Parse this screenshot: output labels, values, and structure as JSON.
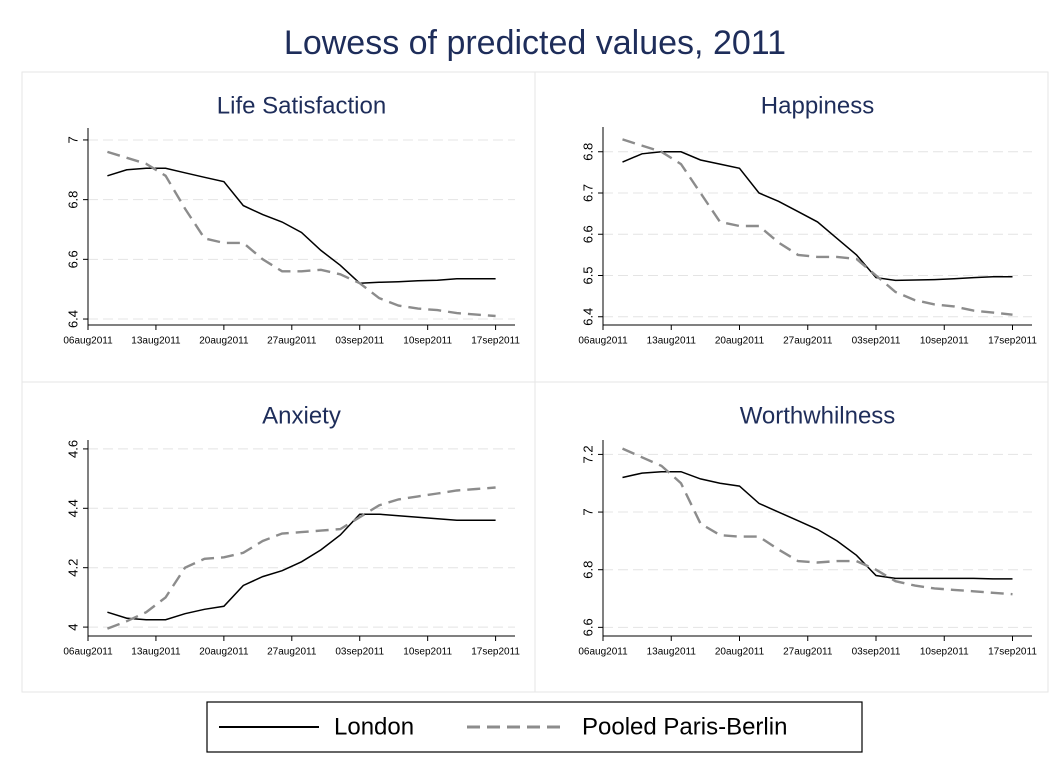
{
  "title": "Lowess of predicted values, 2011",
  "legend": "bottom",
  "chart_data": [
    {
      "type": "line",
      "title": "Life Satisfaction",
      "x": [
        "2011-08-08",
        "2011-08-10",
        "2011-08-12",
        "2011-08-14",
        "2011-08-16",
        "2011-08-18",
        "2011-08-20",
        "2011-08-22",
        "2011-08-24",
        "2011-08-26",
        "2011-08-28",
        "2011-08-30",
        "2011-09-01",
        "2011-09-03",
        "2011-09-05",
        "2011-09-07",
        "2011-09-09",
        "2011-09-11",
        "2011-09-13",
        "2011-09-15",
        "2011-09-17"
      ],
      "series": [
        {
          "name": "London",
          "color": "#000000",
          "values": [
            6.88,
            6.9,
            6.905,
            6.905,
            6.89,
            6.875,
            6.86,
            6.78,
            6.75,
            6.725,
            6.69,
            6.63,
            6.58,
            6.52,
            6.523,
            6.525,
            6.528,
            6.53,
            6.535,
            6.535,
            6.535
          ]
        },
        {
          "name": "Pooled Paris-Berlin",
          "color": "#8c8c8c",
          "values": [
            6.96,
            6.94,
            6.92,
            6.88,
            6.77,
            6.67,
            6.655,
            6.655,
            6.6,
            6.56,
            6.56,
            6.565,
            6.55,
            6.52,
            6.47,
            6.445,
            6.435,
            6.43,
            6.42,
            6.415,
            6.41
          ]
        }
      ],
      "xlim": [
        "2011-08-06",
        "2011-09-19"
      ],
      "xticks": [
        {
          "value": "2011-08-06",
          "label": "06aug2011"
        },
        {
          "value": "2011-08-13",
          "label": "13aug2011"
        },
        {
          "value": "2011-08-20",
          "label": "20aug2011"
        },
        {
          "value": "2011-08-27",
          "label": "27aug2011"
        },
        {
          "value": "2011-09-03",
          "label": "03sep2011"
        },
        {
          "value": "2011-09-10",
          "label": "10sep2011"
        },
        {
          "value": "2011-09-17",
          "label": "17sep2011"
        }
      ],
      "ylim": [
        6.38,
        7.04
      ],
      "yticks": [
        6.4,
        6.6,
        6.8,
        7
      ],
      "grid": true
    },
    {
      "type": "line",
      "title": "Happiness",
      "x": [
        "2011-08-08",
        "2011-08-10",
        "2011-08-12",
        "2011-08-14",
        "2011-08-16",
        "2011-08-18",
        "2011-08-20",
        "2011-08-22",
        "2011-08-24",
        "2011-08-26",
        "2011-08-28",
        "2011-08-30",
        "2011-09-01",
        "2011-09-03",
        "2011-09-05",
        "2011-09-07",
        "2011-09-09",
        "2011-09-11",
        "2011-09-13",
        "2011-09-15",
        "2011-09-17"
      ],
      "series": [
        {
          "name": "London",
          "color": "#000000",
          "values": [
            6.775,
            6.795,
            6.8,
            6.8,
            6.78,
            6.77,
            6.76,
            6.7,
            6.68,
            6.655,
            6.63,
            6.59,
            6.55,
            6.495,
            6.488,
            6.489,
            6.49,
            6.492,
            6.495,
            6.497,
            6.497
          ]
        },
        {
          "name": "Pooled Paris-Berlin",
          "color": "#8c8c8c",
          "values": [
            6.83,
            6.815,
            6.8,
            6.77,
            6.7,
            6.63,
            6.62,
            6.62,
            6.58,
            6.55,
            6.545,
            6.545,
            6.54,
            6.5,
            6.46,
            6.44,
            6.43,
            6.425,
            6.415,
            6.41,
            6.405
          ]
        }
      ],
      "xlim": [
        "2011-08-06",
        "2011-09-19"
      ],
      "xticks": [
        {
          "value": "2011-08-06",
          "label": "06aug2011"
        },
        {
          "value": "2011-08-13",
          "label": "13aug2011"
        },
        {
          "value": "2011-08-20",
          "label": "20aug2011"
        },
        {
          "value": "2011-08-27",
          "label": "27aug2011"
        },
        {
          "value": "2011-09-03",
          "label": "03sep2011"
        },
        {
          "value": "2011-09-10",
          "label": "10sep2011"
        },
        {
          "value": "2011-09-17",
          "label": "17sep2011"
        }
      ],
      "ylim": [
        6.38,
        6.86
      ],
      "yticks": [
        6.4,
        6.5,
        6.6,
        6.7,
        6.8
      ],
      "grid": true
    },
    {
      "type": "line",
      "title": "Anxiety",
      "x": [
        "2011-08-08",
        "2011-08-10",
        "2011-08-12",
        "2011-08-14",
        "2011-08-16",
        "2011-08-18",
        "2011-08-20",
        "2011-08-22",
        "2011-08-24",
        "2011-08-26",
        "2011-08-28",
        "2011-08-30",
        "2011-09-01",
        "2011-09-03",
        "2011-09-05",
        "2011-09-07",
        "2011-09-09",
        "2011-09-11",
        "2011-09-13",
        "2011-09-15",
        "2011-09-17"
      ],
      "series": [
        {
          "name": "London",
          "color": "#000000",
          "values": [
            4.05,
            4.03,
            4.025,
            4.025,
            4.045,
            4.06,
            4.07,
            4.14,
            4.17,
            4.19,
            4.22,
            4.26,
            4.31,
            4.38,
            4.38,
            4.375,
            4.37,
            4.365,
            4.36,
            4.36,
            4.36
          ]
        },
        {
          "name": "Pooled Paris-Berlin",
          "color": "#8c8c8c",
          "values": [
            3.995,
            4.02,
            4.05,
            4.1,
            4.2,
            4.23,
            4.235,
            4.25,
            4.29,
            4.315,
            4.32,
            4.325,
            4.33,
            4.37,
            4.41,
            4.43,
            4.44,
            4.45,
            4.46,
            4.465,
            4.47
          ]
        }
      ],
      "xlim": [
        "2011-08-06",
        "2011-09-19"
      ],
      "xticks": [
        {
          "value": "2011-08-06",
          "label": "06aug2011"
        },
        {
          "value": "2011-08-13",
          "label": "13aug2011"
        },
        {
          "value": "2011-08-20",
          "label": "20aug2011"
        },
        {
          "value": "2011-08-27",
          "label": "27aug2011"
        },
        {
          "value": "2011-09-03",
          "label": "03sep2011"
        },
        {
          "value": "2011-09-10",
          "label": "10sep2011"
        },
        {
          "value": "2011-09-17",
          "label": "17sep2011"
        }
      ],
      "ylim": [
        3.97,
        4.63
      ],
      "yticks": [
        4,
        4.2,
        4.4,
        4.6
      ],
      "grid": true
    },
    {
      "type": "line",
      "title": "Worthwhilness",
      "x": [
        "2011-08-08",
        "2011-08-10",
        "2011-08-12",
        "2011-08-14",
        "2011-08-16",
        "2011-08-18",
        "2011-08-20",
        "2011-08-22",
        "2011-08-24",
        "2011-08-26",
        "2011-08-28",
        "2011-08-30",
        "2011-09-01",
        "2011-09-03",
        "2011-09-05",
        "2011-09-07",
        "2011-09-09",
        "2011-09-11",
        "2011-09-13",
        "2011-09-15",
        "2011-09-17"
      ],
      "series": [
        {
          "name": "London",
          "color": "#000000",
          "values": [
            7.12,
            7.135,
            7.14,
            7.14,
            7.115,
            7.1,
            7.09,
            7.03,
            7,
            6.97,
            6.94,
            6.9,
            6.85,
            6.78,
            6.77,
            6.77,
            6.77,
            6.77,
            6.77,
            6.768,
            6.768
          ]
        },
        {
          "name": "Pooled Paris-Berlin",
          "color": "#8c8c8c",
          "values": [
            7.22,
            7.19,
            7.16,
            7.1,
            6.96,
            6.92,
            6.915,
            6.915,
            6.87,
            6.83,
            6.825,
            6.83,
            6.83,
            6.8,
            6.76,
            6.745,
            6.735,
            6.73,
            6.725,
            6.72,
            6.715
          ]
        }
      ],
      "xlim": [
        "2011-08-06",
        "2011-09-19"
      ],
      "xticks": [
        {
          "value": "2011-08-06",
          "label": "06aug2011"
        },
        {
          "value": "2011-08-13",
          "label": "13aug2011"
        },
        {
          "value": "2011-08-20",
          "label": "20aug2011"
        },
        {
          "value": "2011-08-27",
          "label": "27aug2011"
        },
        {
          "value": "2011-09-03",
          "label": "03sep2011"
        },
        {
          "value": "2011-09-10",
          "label": "10sep2011"
        },
        {
          "value": "2011-09-17",
          "label": "17sep2011"
        }
      ],
      "ylim": [
        6.57,
        7.25
      ],
      "yticks": [
        6.6,
        6.8,
        7,
        7.2
      ],
      "grid": true
    }
  ]
}
